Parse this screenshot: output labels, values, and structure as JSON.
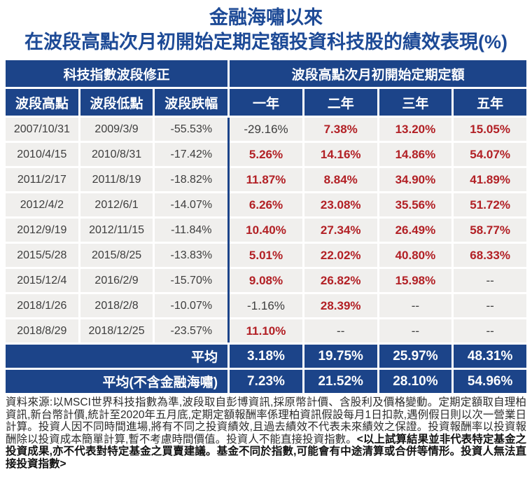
{
  "title": {
    "line1": "金融海嘯以來",
    "line2": "在波段高點次月初開始定期定額投資科技股的績效表現(%)"
  },
  "chart_data": {
    "type": "table",
    "title": "金融海嘯以來在波段高點次月初開始定期定額投資科技股的績效表現(%)",
    "group_headers": [
      "科技指數波段修正",
      "波段高點次月初開始定期定額"
    ],
    "column_headers": [
      "波段高點",
      "波段低點",
      "波段跌幅",
      "一年",
      "二年",
      "三年",
      "五年"
    ],
    "rows": [
      [
        "2007/10/31",
        "2009/3/9",
        "-55.53%",
        "-29.16%",
        "7.38%",
        "13.20%",
        "15.05%"
      ],
      [
        "2010/4/15",
        "2010/8/31",
        "-17.42%",
        "5.26%",
        "14.16%",
        "14.86%",
        "54.07%"
      ],
      [
        "2011/2/17",
        "2011/8/19",
        "-18.82%",
        "11.87%",
        "8.84%",
        "34.90%",
        "41.89%"
      ],
      [
        "2012/4/2",
        "2012/6/1",
        "-14.07%",
        "6.26%",
        "23.08%",
        "35.56%",
        "51.72%"
      ],
      [
        "2012/9/19",
        "2012/11/15",
        "-11.84%",
        "10.40%",
        "27.34%",
        "26.49%",
        "58.77%"
      ],
      [
        "2015/5/28",
        "2015/8/25",
        "-13.83%",
        "5.01%",
        "22.02%",
        "40.80%",
        "68.33%"
      ],
      [
        "2015/12/4",
        "2016/2/9",
        "-15.70%",
        "9.08%",
        "26.82%",
        "15.98%",
        "--"
      ],
      [
        "2018/1/26",
        "2018/2/8",
        "-10.07%",
        "-1.16%",
        "28.39%",
        "--",
        "--"
      ],
      [
        "2018/8/29",
        "2018/12/25",
        "-23.57%",
        "11.10%",
        "--",
        "--",
        "--"
      ]
    ],
    "summary_rows": [
      {
        "label": "平均",
        "values": [
          "3.18%",
          "19.75%",
          "25.97%",
          "48.31%"
        ]
      },
      {
        "label": "平均(不含金融海嘯)",
        "values": [
          "7.23%",
          "21.52%",
          "28.10%",
          "54.96%"
        ]
      }
    ]
  },
  "footer": {
    "text": "資料來源:以MSCI世界科技指數為準,波段取自彭博資訊,採原幣計價、含股利及價格變動。定期定額取自理柏資訊,新台幣計價,統計至2020年五月底,定期定額報酬率係理柏資訊假設每月1日扣款,遇例假日則以次一營業日計算。投資人因不同時間進場,將有不同之投資績效,且過去績效不代表未來績效之保證。投資報酬率以投資報酬除以投資成本簡單計算,暫不考慮時間價值。投資人不能直接投資指數。",
    "bold_note": "<以上試算結果並非代表特定基金之投資成果,亦不代表對特定基金之買賣建議。基金不同於指數,可能會有中途清算或合併等情形。投資人無法直接投資指數>"
  },
  "colors": {
    "navy": "#1c4489",
    "title_blue": "#1d4a96",
    "row_bg": "#f0efed",
    "positive_red": "#b22025",
    "neutral_dark": "#3d3d3d"
  }
}
